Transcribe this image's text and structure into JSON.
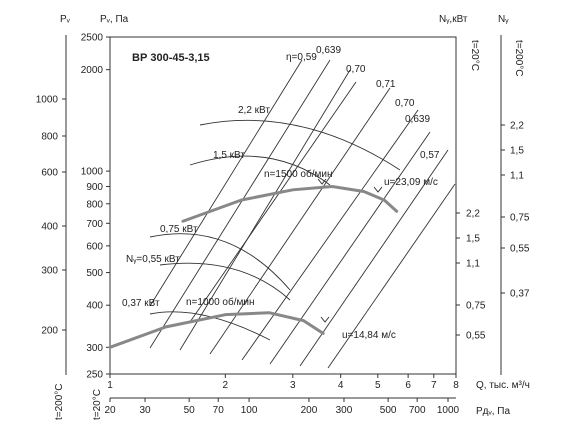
{
  "chart_data": {
    "type": "line",
    "title": "ВР 300-45-3,15",
    "y_axes": {
      "pv_label": "Pᵥ, Па",
      "pv_ticks": [
        250,
        300,
        400,
        500,
        600,
        700,
        800,
        900,
        1000,
        2000,
        2500
      ],
      "pv_tick_labels": [
        "250",
        "300",
        "400",
        "500",
        "600",
        "700",
        "800",
        "900",
        "1000",
        "2000",
        "2500"
      ],
      "pv200_label": "Pᵥ",
      "pv200_ticks": [
        200,
        300,
        400,
        600,
        800,
        1000
      ],
      "pv200_tick_labels": [
        "200",
        "300",
        "400",
        "600",
        "800",
        "1000"
      ],
      "ny20_label": "Nᵧ,кВт",
      "ny20_ticks": [
        0.55,
        0.75,
        1.1,
        1.5,
        2.2
      ],
      "ny20_tick_labels": [
        "0,55",
        "0,75",
        "1,1",
        "1,5",
        "2,2"
      ],
      "ny200_label": "Nᵧ",
      "ny200_ticks": [
        0.37,
        0.55,
        0.75,
        1.1,
        1.5,
        2.2
      ],
      "ny200_tick_labels": [
        "0,37",
        "0,55",
        "0,75",
        "1,1",
        "1,5",
        "2,2"
      ],
      "t20_label": "t=20°С",
      "t200_label": "t=200°С"
    },
    "x_axes": {
      "q_label": "Q, тыс. м³/ч",
      "q_ticks": [
        1,
        2,
        3,
        4,
        5,
        6,
        7,
        8
      ],
      "q_tick_labels": [
        "1",
        "2",
        "3",
        "4",
        "5",
        "6",
        "7",
        "8"
      ],
      "pdv_label": "Pдᵥ, Па",
      "pdv_ticks": [
        20,
        30,
        50,
        70,
        100,
        200,
        300,
        500,
        700,
        1000
      ],
      "pdv_tick_labels": [
        "20",
        "30",
        "50",
        "70",
        "100",
        "200",
        "300",
        "500",
        "700",
        "1000"
      ],
      "pdv200_label": "t=20°С"
    },
    "xlim": [
      1,
      8
    ],
    "ylim": [
      250,
      2500
    ],
    "log_scale": true,
    "series": [
      {
        "name": "n=1500 об/мин",
        "points": [
          [
            1.55,
            710
          ],
          [
            2.2,
            820
          ],
          [
            3.0,
            880
          ],
          [
            3.8,
            900
          ],
          [
            4.6,
            870
          ],
          [
            5.2,
            820
          ],
          [
            5.6,
            760
          ]
        ]
      },
      {
        "name": "n=1000 об/мин",
        "points": [
          [
            1.0,
            300
          ],
          [
            1.4,
            345
          ],
          [
            2.0,
            375
          ],
          [
            2.6,
            380
          ],
          [
            3.2,
            360
          ],
          [
            3.6,
            330
          ]
        ]
      }
    ],
    "efficiency_labels": [
      "η=0,59",
      "0,639",
      "0,70",
      "0,71",
      "0,70",
      "0,639",
      "0,57"
    ],
    "power_labels": [
      "2,2 кВт",
      "1,5 кВт",
      "0,75 кВт",
      "Nᵧ=0,55 кВт",
      "0,37 кВт"
    ],
    "velocity_labels": [
      "u=23,09 м/с",
      "u=14,84 м/с"
    ],
    "speed_labels": [
      "n=1500 об/мин",
      "n=1000 об/мин"
    ]
  }
}
